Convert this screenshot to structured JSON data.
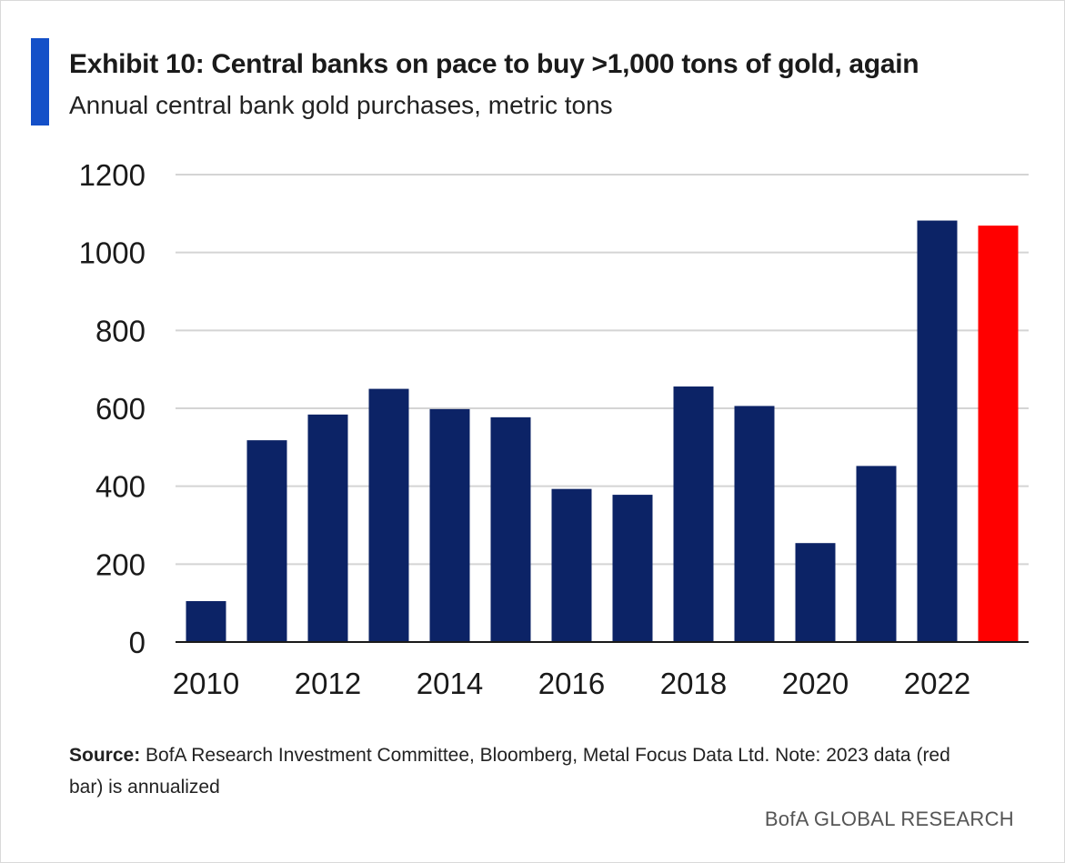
{
  "header": {
    "title": "Exhibit 10: Central banks on pace to buy >1,000 tons of gold, again",
    "subtitle": "Annual central bank gold purchases, metric tons"
  },
  "footer": {
    "source_label": "Source:",
    "source_text": " BofA Research Investment Committee, Bloomberg, Metal Focus Data Ltd. Note: 2023 data (red bar) is annualized",
    "brand": "BofA GLOBAL RESEARCH"
  },
  "colors": {
    "accent": "#1450c8",
    "bar": "#0c2366",
    "highlight": "#ff0000",
    "grid": "#d4d4d4",
    "axis": "#1a1a1a"
  },
  "chart_data": {
    "type": "bar",
    "title": "Exhibit 10: Central banks on pace to buy >1,000 tons of gold, again",
    "subtitle": "Annual central bank gold purchases, metric tons",
    "xlabel": "",
    "ylabel": "",
    "categories": [
      2010,
      2011,
      2012,
      2013,
      2014,
      2015,
      2016,
      2017,
      2018,
      2019,
      2020,
      2021,
      2022,
      2023
    ],
    "values": [
      105,
      518,
      584,
      650,
      598,
      577,
      393,
      378,
      656,
      606,
      254,
      452,
      1082,
      1069
    ],
    "highlight_index": 13,
    "x_tick_labels": [
      "2010",
      "2012",
      "2014",
      "2016",
      "2018",
      "2020",
      "2022"
    ],
    "ylim": [
      0,
      1200
    ],
    "yticks": [
      0,
      200,
      400,
      600,
      800,
      1000,
      1200
    ],
    "grid": "horizontal",
    "legend": "none"
  }
}
